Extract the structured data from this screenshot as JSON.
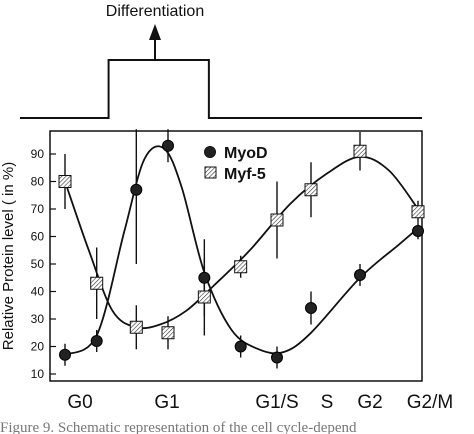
{
  "timeline": {
    "label": "Differentiation",
    "high_from": "G0",
    "high_to": "G1"
  },
  "caption": "Figure 9. Schematic representation of the cell cycle-depend",
  "chart_data": {
    "type": "scatter",
    "title": "",
    "xlabel": "",
    "ylabel": "Relative Protein level ( in %)",
    "categories": [
      "G0",
      "G1",
      "G1/S",
      "S",
      "G2",
      "G2/M"
    ],
    "ylim": [
      8,
      100
    ],
    "yticks": [
      10,
      20,
      30,
      40,
      50,
      60,
      70,
      80,
      90
    ],
    "legend_position": "top-right",
    "series": [
      {
        "name": "MyoD",
        "marker": "filled-circle",
        "color": "#1a1a1a",
        "points": [
          {
            "x": 0.0,
            "y": 17,
            "err": 4
          },
          {
            "x": 0.4,
            "y": 22,
            "err": 4
          },
          {
            "x": 0.9,
            "y": 77,
            "err": 27
          },
          {
            "x": 1.3,
            "y": 93,
            "err": 6
          },
          {
            "x": 1.7,
            "y": 45,
            "err": 14
          },
          {
            "x": 2.1,
            "y": 20,
            "err": 4
          },
          {
            "x": 2.5,
            "y": 16,
            "err": 4
          },
          {
            "x": 3.0,
            "y": 34,
            "err": 6
          },
          {
            "x": 3.6,
            "y": 46,
            "err": 4
          },
          {
            "x": 4.2,
            "y": 62,
            "err": 3
          }
        ],
        "curve": [
          [
            0.0,
            17
          ],
          [
            0.4,
            24
          ],
          [
            0.75,
            62
          ],
          [
            1.0,
            88
          ],
          [
            1.25,
            92
          ],
          [
            1.45,
            78
          ],
          [
            1.7,
            47
          ],
          [
            2.0,
            26
          ],
          [
            2.3,
            19
          ],
          [
            2.6,
            18
          ],
          [
            3.0,
            25
          ],
          [
            3.6,
            45
          ],
          [
            4.0,
            57
          ],
          [
            4.2,
            63
          ]
        ]
      },
      {
        "name": "Myf-5",
        "marker": "hatched-square",
        "color": "#1a1a1a",
        "points": [
          {
            "x": 0.0,
            "y": 80,
            "err": 10
          },
          {
            "x": 0.4,
            "y": 43,
            "err": 13
          },
          {
            "x": 0.9,
            "y": 27,
            "err": 8
          },
          {
            "x": 1.3,
            "y": 25,
            "err": 6
          },
          {
            "x": 1.7,
            "y": 38,
            "err": 14
          },
          {
            "x": 2.1,
            "y": 49,
            "err": 4
          },
          {
            "x": 2.5,
            "y": 66,
            "err": 14
          },
          {
            "x": 3.0,
            "y": 77,
            "err": 10
          },
          {
            "x": 3.6,
            "y": 91,
            "err": 7
          },
          {
            "x": 4.2,
            "y": 69,
            "err": 4
          }
        ],
        "curve": [
          [
            0.0,
            80
          ],
          [
            0.3,
            55
          ],
          [
            0.6,
            33
          ],
          [
            0.9,
            27
          ],
          [
            1.2,
            28
          ],
          [
            1.5,
            33
          ],
          [
            1.8,
            42
          ],
          [
            2.2,
            55
          ],
          [
            2.7,
            72
          ],
          [
            3.2,
            83
          ],
          [
            3.6,
            89
          ],
          [
            3.9,
            84
          ],
          [
            4.2,
            70
          ]
        ]
      }
    ]
  }
}
